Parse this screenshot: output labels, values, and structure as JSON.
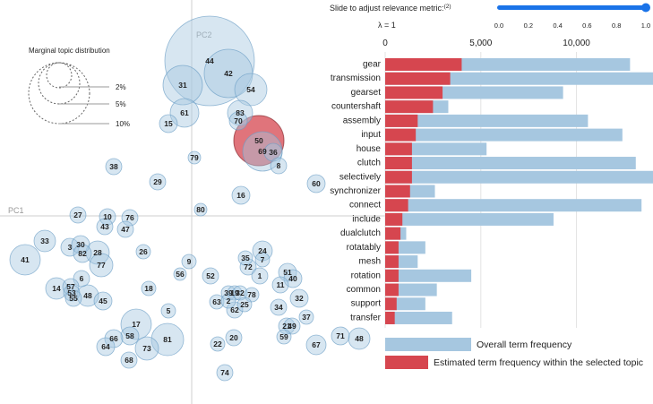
{
  "intertopic": {
    "pc1_label": "PC1",
    "pc2_label": "PC2",
    "legend": {
      "title": "Marginal topic distribution",
      "labels": [
        "2%",
        "5%",
        "10%"
      ]
    },
    "selected_topic": "50",
    "topics": [
      {
        "id": "44",
        "x": 234,
        "y": 68,
        "r": 50
      },
      {
        "id": "42",
        "x": 255,
        "y": 82,
        "r": 27
      },
      {
        "id": "31",
        "x": 204,
        "y": 95,
        "r": 22
      },
      {
        "id": "54",
        "x": 280,
        "y": 100,
        "r": 18
      },
      {
        "id": "61",
        "x": 206,
        "y": 126,
        "r": 16
      },
      {
        "id": "15",
        "x": 188,
        "y": 138,
        "r": 10
      },
      {
        "id": "83",
        "x": 268,
        "y": 126,
        "r": 14
      },
      {
        "id": "70",
        "x": 266,
        "y": 135,
        "r": 10
      },
      {
        "id": "50",
        "x": 289,
        "y": 157,
        "r": 28
      },
      {
        "id": "69",
        "x": 293,
        "y": 169,
        "r": 22
      },
      {
        "id": "36",
        "x": 305,
        "y": 170,
        "r": 10
      },
      {
        "id": "8",
        "x": 311,
        "y": 185,
        "r": 9
      },
      {
        "id": "79",
        "x": 217,
        "y": 176,
        "r": 7
      },
      {
        "id": "38",
        "x": 127,
        "y": 186,
        "r": 9
      },
      {
        "id": "29",
        "x": 176,
        "y": 203,
        "r": 9
      },
      {
        "id": "60",
        "x": 353,
        "y": 205,
        "r": 10
      },
      {
        "id": "16",
        "x": 269,
        "y": 218,
        "r": 10
      },
      {
        "id": "80",
        "x": 224,
        "y": 234,
        "r": 7
      },
      {
        "id": "27",
        "x": 87,
        "y": 240,
        "r": 9
      },
      {
        "id": "10",
        "x": 120,
        "y": 242,
        "r": 9
      },
      {
        "id": "76",
        "x": 145,
        "y": 243,
        "r": 9
      },
      {
        "id": "43",
        "x": 117,
        "y": 253,
        "r": 9
      },
      {
        "id": "47",
        "x": 140,
        "y": 256,
        "r": 9
      },
      {
        "id": "33",
        "x": 50,
        "y": 269,
        "r": 12
      },
      {
        "id": "3",
        "x": 78,
        "y": 276,
        "r": 10
      },
      {
        "id": "30",
        "x": 90,
        "y": 273,
        "r": 10
      },
      {
        "id": "82",
        "x": 92,
        "y": 283,
        "r": 10
      },
      {
        "id": "28",
        "x": 109,
        "y": 282,
        "r": 13
      },
      {
        "id": "26",
        "x": 160,
        "y": 281,
        "r": 8
      },
      {
        "id": "41",
        "x": 28,
        "y": 290,
        "r": 17
      },
      {
        "id": "77",
        "x": 113,
        "y": 296,
        "r": 13
      },
      {
        "id": "24",
        "x": 293,
        "y": 280,
        "r": 11
      },
      {
        "id": "35",
        "x": 274,
        "y": 288,
        "r": 8
      },
      {
        "id": "7",
        "x": 293,
        "y": 290,
        "r": 8
      },
      {
        "id": "72",
        "x": 277,
        "y": 298,
        "r": 9
      },
      {
        "id": "9",
        "x": 211,
        "y": 292,
        "r": 8
      },
      {
        "id": "56",
        "x": 201,
        "y": 306,
        "r": 7
      },
      {
        "id": "52",
        "x": 235,
        "y": 308,
        "r": 9
      },
      {
        "id": "1",
        "x": 290,
        "y": 308,
        "r": 9
      },
      {
        "id": "51",
        "x": 321,
        "y": 304,
        "r": 10
      },
      {
        "id": "40",
        "x": 327,
        "y": 311,
        "r": 10
      },
      {
        "id": "11",
        "x": 313,
        "y": 318,
        "r": 9
      },
      {
        "id": "6",
        "x": 91,
        "y": 311,
        "r": 9
      },
      {
        "id": "57",
        "x": 79,
        "y": 320,
        "r": 9
      },
      {
        "id": "14",
        "x": 63,
        "y": 322,
        "r": 12
      },
      {
        "id": "53",
        "x": 80,
        "y": 327,
        "r": 9
      },
      {
        "id": "55",
        "x": 82,
        "y": 333,
        "r": 9
      },
      {
        "id": "48",
        "x": 98,
        "y": 330,
        "r": 12
      },
      {
        "id": "45",
        "x": 115,
        "y": 336,
        "r": 10
      },
      {
        "id": "18",
        "x": 166,
        "y": 322,
        "r": 8
      },
      {
        "id": "39",
        "x": 255,
        "y": 327,
        "r": 8
      },
      {
        "id": "19",
        "x": 262,
        "y": 327,
        "r": 8
      },
      {
        "id": "32",
        "x": 268,
        "y": 327,
        "r": 8
      },
      {
        "id": "78",
        "x": 281,
        "y": 329,
        "r": 8
      },
      {
        "id": "63",
        "x": 242,
        "y": 337,
        "r": 8
      },
      {
        "id": "2",
        "x": 255,
        "y": 336,
        "r": 8
      },
      {
        "id": "25",
        "x": 273,
        "y": 340,
        "r": 8
      },
      {
        "id": "62",
        "x": 262,
        "y": 346,
        "r": 9
      },
      {
        "id": "34",
        "x": 311,
        "y": 343,
        "r": 9
      },
      {
        "id": "32",
        "x": 334,
        "y": 333,
        "r": 10
      },
      {
        "id": "5",
        "x": 188,
        "y": 347,
        "r": 8
      },
      {
        "id": "37",
        "x": 342,
        "y": 354,
        "r": 8
      },
      {
        "id": "21",
        "x": 320,
        "y": 364,
        "r": 9
      },
      {
        "id": "49",
        "x": 326,
        "y": 364,
        "r": 9
      },
      {
        "id": "59",
        "x": 317,
        "y": 376,
        "r": 8
      },
      {
        "id": "17",
        "x": 152,
        "y": 362,
        "r": 17
      },
      {
        "id": "58",
        "x": 145,
        "y": 375,
        "r": 10
      },
      {
        "id": "66",
        "x": 127,
        "y": 378,
        "r": 10
      },
      {
        "id": "81",
        "x": 187,
        "y": 379,
        "r": 18
      },
      {
        "id": "64",
        "x": 118,
        "y": 387,
        "r": 10
      },
      {
        "id": "73",
        "x": 164,
        "y": 389,
        "r": 13
      },
      {
        "id": "20",
        "x": 261,
        "y": 377,
        "r": 9
      },
      {
        "id": "22",
        "x": 243,
        "y": 384,
        "r": 8
      },
      {
        "id": "71",
        "x": 380,
        "y": 375,
        "r": 10
      },
      {
        "id": "48",
        "x": 401,
        "y": 378,
        "r": 12
      },
      {
        "id": "67",
        "x": 353,
        "y": 385,
        "r": 11
      },
      {
        "id": "68",
        "x": 144,
        "y": 402,
        "r": 9
      },
      {
        "id": "74",
        "x": 251,
        "y": 416,
        "r": 9
      }
    ]
  },
  "slider": {
    "title": "Slide to adjust relevance metric:",
    "footnote": "(2)",
    "lambda_label": "λ = 1",
    "value": 1.0,
    "ticks": [
      "0.0",
      "0.2",
      "0.4",
      "0.6",
      "0.8",
      "1.0"
    ]
  },
  "barchart": {
    "axis_ticks": [
      "0",
      "5,000",
      "10,000"
    ],
    "key": {
      "overall_label": "Overall term frequency",
      "selected_label": "Estimated term frequency within the selected topic"
    },
    "colors": {
      "overall": "#a6c7e0",
      "selected": "#d6464f"
    }
  },
  "chart_data": {
    "type": "bar",
    "orientation": "horizontal",
    "categories": [
      "gear",
      "transmission",
      "gearset",
      "countershaft",
      "assembly",
      "input",
      "house",
      "clutch",
      "selectively",
      "synchronizer",
      "connect",
      "include",
      "dualclutch",
      "rotatably",
      "mesh",
      "rotation",
      "common",
      "support",
      "transfer"
    ],
    "series": [
      {
        "name": "Overall term frequency",
        "values": [
          12800,
          14000,
          9300,
          3300,
          10600,
          12400,
          5300,
          13100,
          14000,
          2600,
          13400,
          8800,
          1100,
          2100,
          1700,
          4500,
          2700,
          2100,
          3500
        ]
      },
      {
        "name": "Estimated term frequency within the selected topic",
        "values": [
          4000,
          3400,
          3000,
          2500,
          1700,
          1600,
          1400,
          1400,
          1400,
          1300,
          1200,
          900,
          800,
          700,
          700,
          700,
          700,
          600,
          500
        ]
      }
    ],
    "xlim": [
      0,
      14000
    ]
  }
}
